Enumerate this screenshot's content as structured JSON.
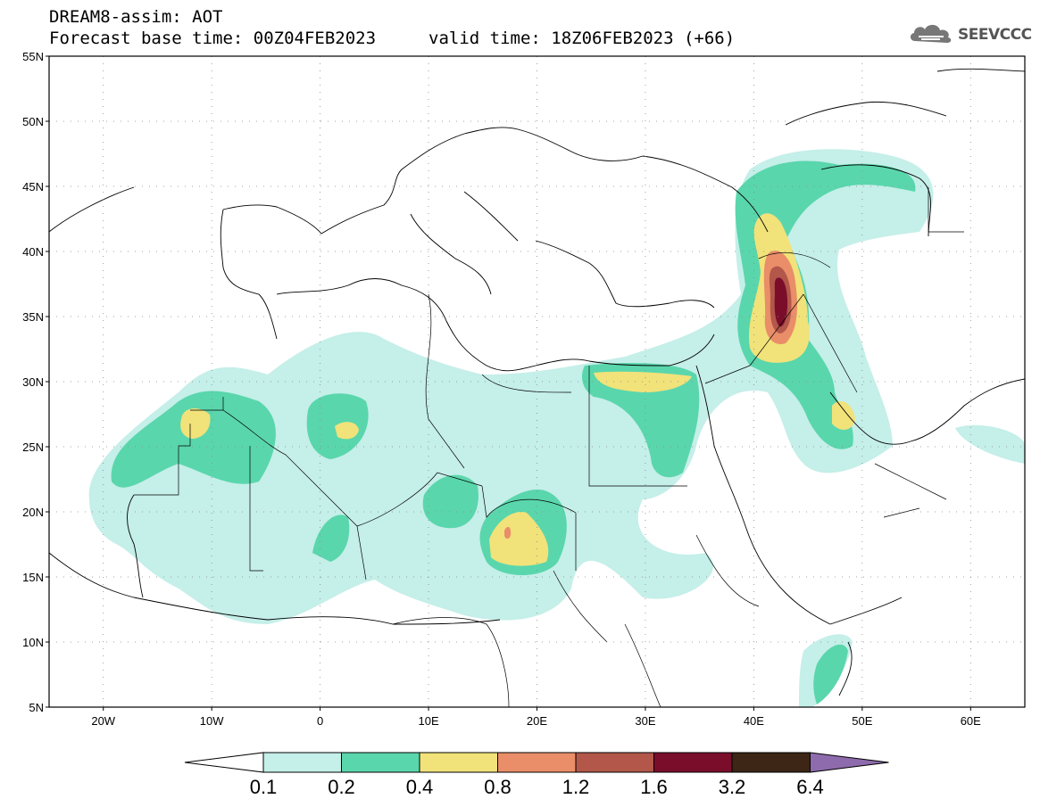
{
  "header": {
    "title": "DREAM8-assim: AOT",
    "base_time": "Forecast base time: 00Z04FEB2023",
    "valid_time": "valid time: 18Z06FEB2023 (+66)"
  },
  "logo": {
    "text": "SEEVCCC",
    "icon": "cloud-icon"
  },
  "map": {
    "lat_labels": [
      "55N",
      "50N",
      "45N",
      "40N",
      "35N",
      "30N",
      "25N",
      "20N",
      "15N",
      "10N",
      "5N"
    ],
    "lon_labels": [
      "20W",
      "10W",
      "0",
      "10E",
      "20E",
      "30E",
      "40E",
      "50E",
      "60E"
    ],
    "lat_range": [
      5,
      55
    ],
    "lon_range": [
      -25,
      65
    ],
    "grid": true
  },
  "colorbar": {
    "labels": [
      "0.1",
      "0.2",
      "0.4",
      "0.8",
      "1.2",
      "1.6",
      "3.2",
      "6.4"
    ],
    "colors": [
      "#c5efe9",
      "#5ad6ac",
      "#f1e27a",
      "#e98e68",
      "#b2574a",
      "#7a0e2a",
      "#3d2616",
      "#8e6bac"
    ],
    "under_color": "#ffffff"
  }
}
